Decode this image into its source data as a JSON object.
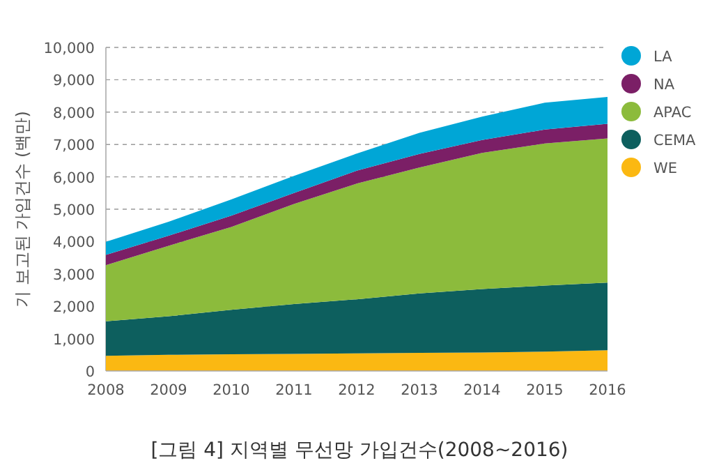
{
  "chart_data": {
    "type": "area",
    "stacked": true,
    "title": "[그림 4] 지역별 무선망 가입건수(2008~2016)",
    "ylabel": "기 보고된 가입건수 (백만)",
    "x": [
      2008,
      2009,
      2010,
      2011,
      2012,
      2013,
      2014,
      2015,
      2016
    ],
    "xlim": [
      2008,
      2016
    ],
    "xticks": [
      2008,
      2009,
      2010,
      2011,
      2012,
      2013,
      2014,
      2015,
      2016
    ],
    "ylim": [
      0,
      10000
    ],
    "yticks": [
      0,
      {
        "value": 1000,
        "label": "1,000"
      },
      {
        "value": 2000,
        "label": "2,000"
      },
      {
        "value": 3000,
        "label": "3,000"
      },
      {
        "value": 4000,
        "label": "4,000"
      },
      {
        "value": 5000,
        "label": "5,000"
      },
      {
        "value": 6000,
        "label": "6,000"
      },
      {
        "value": 7000,
        "label": "7,000"
      },
      {
        "value": 8000,
        "label": "8,000"
      },
      {
        "value": 9000,
        "label": "9,000"
      },
      {
        "value": 10000,
        "label": "10,000"
      }
    ],
    "grid": "y",
    "legend": "right",
    "series": [
      {
        "name": "WE",
        "color": "#fbb812",
        "values": [
          470,
          500,
          515,
          530,
          545,
          560,
          570,
          600,
          640
        ]
      },
      {
        "name": "CEMA",
        "color": "#0d5f5e",
        "values": [
          1065,
          1190,
          1375,
          1540,
          1670,
          1840,
          1960,
          2040,
          2090
        ]
      },
      {
        "name": "APAC",
        "color": "#8cbb3c",
        "values": [
          1735,
          2180,
          2560,
          3090,
          3575,
          3890,
          4210,
          4390,
          4460
        ]
      },
      {
        "name": "NA",
        "color": "#7b1f66",
        "values": [
          320,
          310,
          350,
          340,
          400,
          420,
          400,
          430,
          450
        ]
      },
      {
        "name": "LA",
        "color": "#00a6d6",
        "values": [
          400,
          430,
          500,
          530,
          530,
          650,
          720,
          830,
          830
        ]
      }
    ]
  }
}
